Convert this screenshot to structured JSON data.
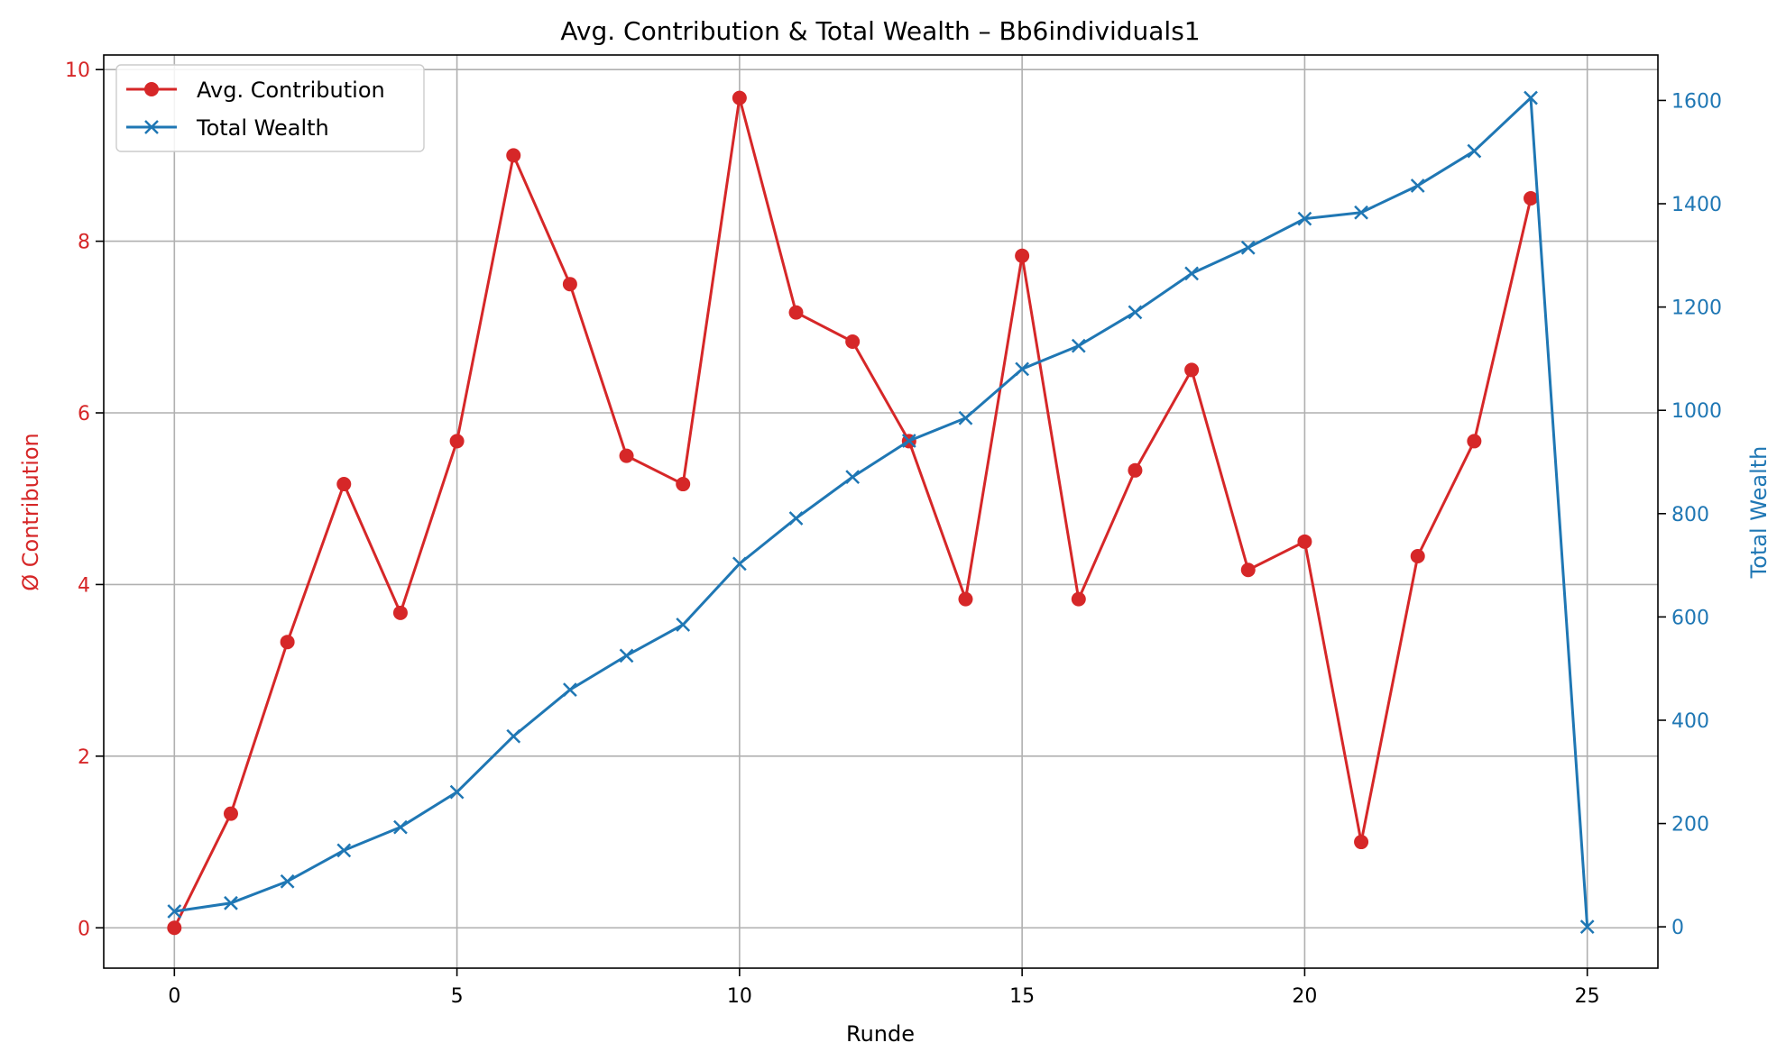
{
  "chart_data": {
    "type": "line",
    "title": "Avg. Contribution & Total Wealth – Bb6individuals1",
    "xlabel": "Runde",
    "ylabel_left": "Ø Contribution",
    "ylabel_right": "Total Wealth",
    "x": [
      0,
      1,
      2,
      3,
      4,
      5,
      6,
      7,
      8,
      9,
      10,
      11,
      12,
      13,
      14,
      15,
      16,
      17,
      18,
      19,
      20,
      21,
      22,
      23,
      24,
      25
    ],
    "xlim": [
      -1.25,
      26.25
    ],
    "xticks": [
      0,
      5,
      10,
      15,
      20,
      25
    ],
    "ylim_left": [
      -0.47,
      10.17
    ],
    "yticks_left": [
      0,
      2,
      4,
      6,
      8,
      10
    ],
    "ylim_right": [
      -80,
      1688
    ],
    "yticks_right": [
      0,
      200,
      400,
      600,
      800,
      1000,
      1200,
      1400,
      1600
    ],
    "grid": true,
    "legend_position": "upper-left",
    "series": [
      {
        "name": "Avg. Contribution",
        "axis": "left",
        "marker": "circle",
        "color": "#d62728",
        "x": [
          0,
          1,
          2,
          3,
          4,
          5,
          6,
          7,
          8,
          9,
          10,
          11,
          12,
          13,
          14,
          15,
          16,
          17,
          18,
          19,
          20,
          21,
          22,
          23,
          24
        ],
        "values": [
          0,
          1.33,
          3.33,
          5.17,
          3.67,
          5.67,
          9.0,
          7.5,
          5.5,
          5.17,
          9.67,
          7.17,
          6.83,
          5.67,
          3.83,
          7.83,
          3.83,
          5.33,
          6.5,
          4.17,
          4.5,
          1.0,
          4.33,
          5.67,
          8.5
        ]
      },
      {
        "name": "Total Wealth",
        "axis": "right",
        "marker": "x",
        "color": "#1f77b4",
        "x": [
          0,
          1,
          2,
          3,
          4,
          5,
          6,
          7,
          8,
          9,
          10,
          11,
          12,
          13,
          14,
          15,
          16,
          17,
          18,
          19,
          20,
          21,
          22,
          23,
          24,
          25
        ],
        "values": [
          30,
          46,
          88,
          148,
          193,
          261,
          369,
          459,
          525,
          585,
          703,
          791,
          871,
          941,
          985,
          1080,
          1125,
          1190,
          1265,
          1315,
          1371,
          1383,
          1435,
          1502,
          1605,
          0
        ]
      }
    ]
  }
}
